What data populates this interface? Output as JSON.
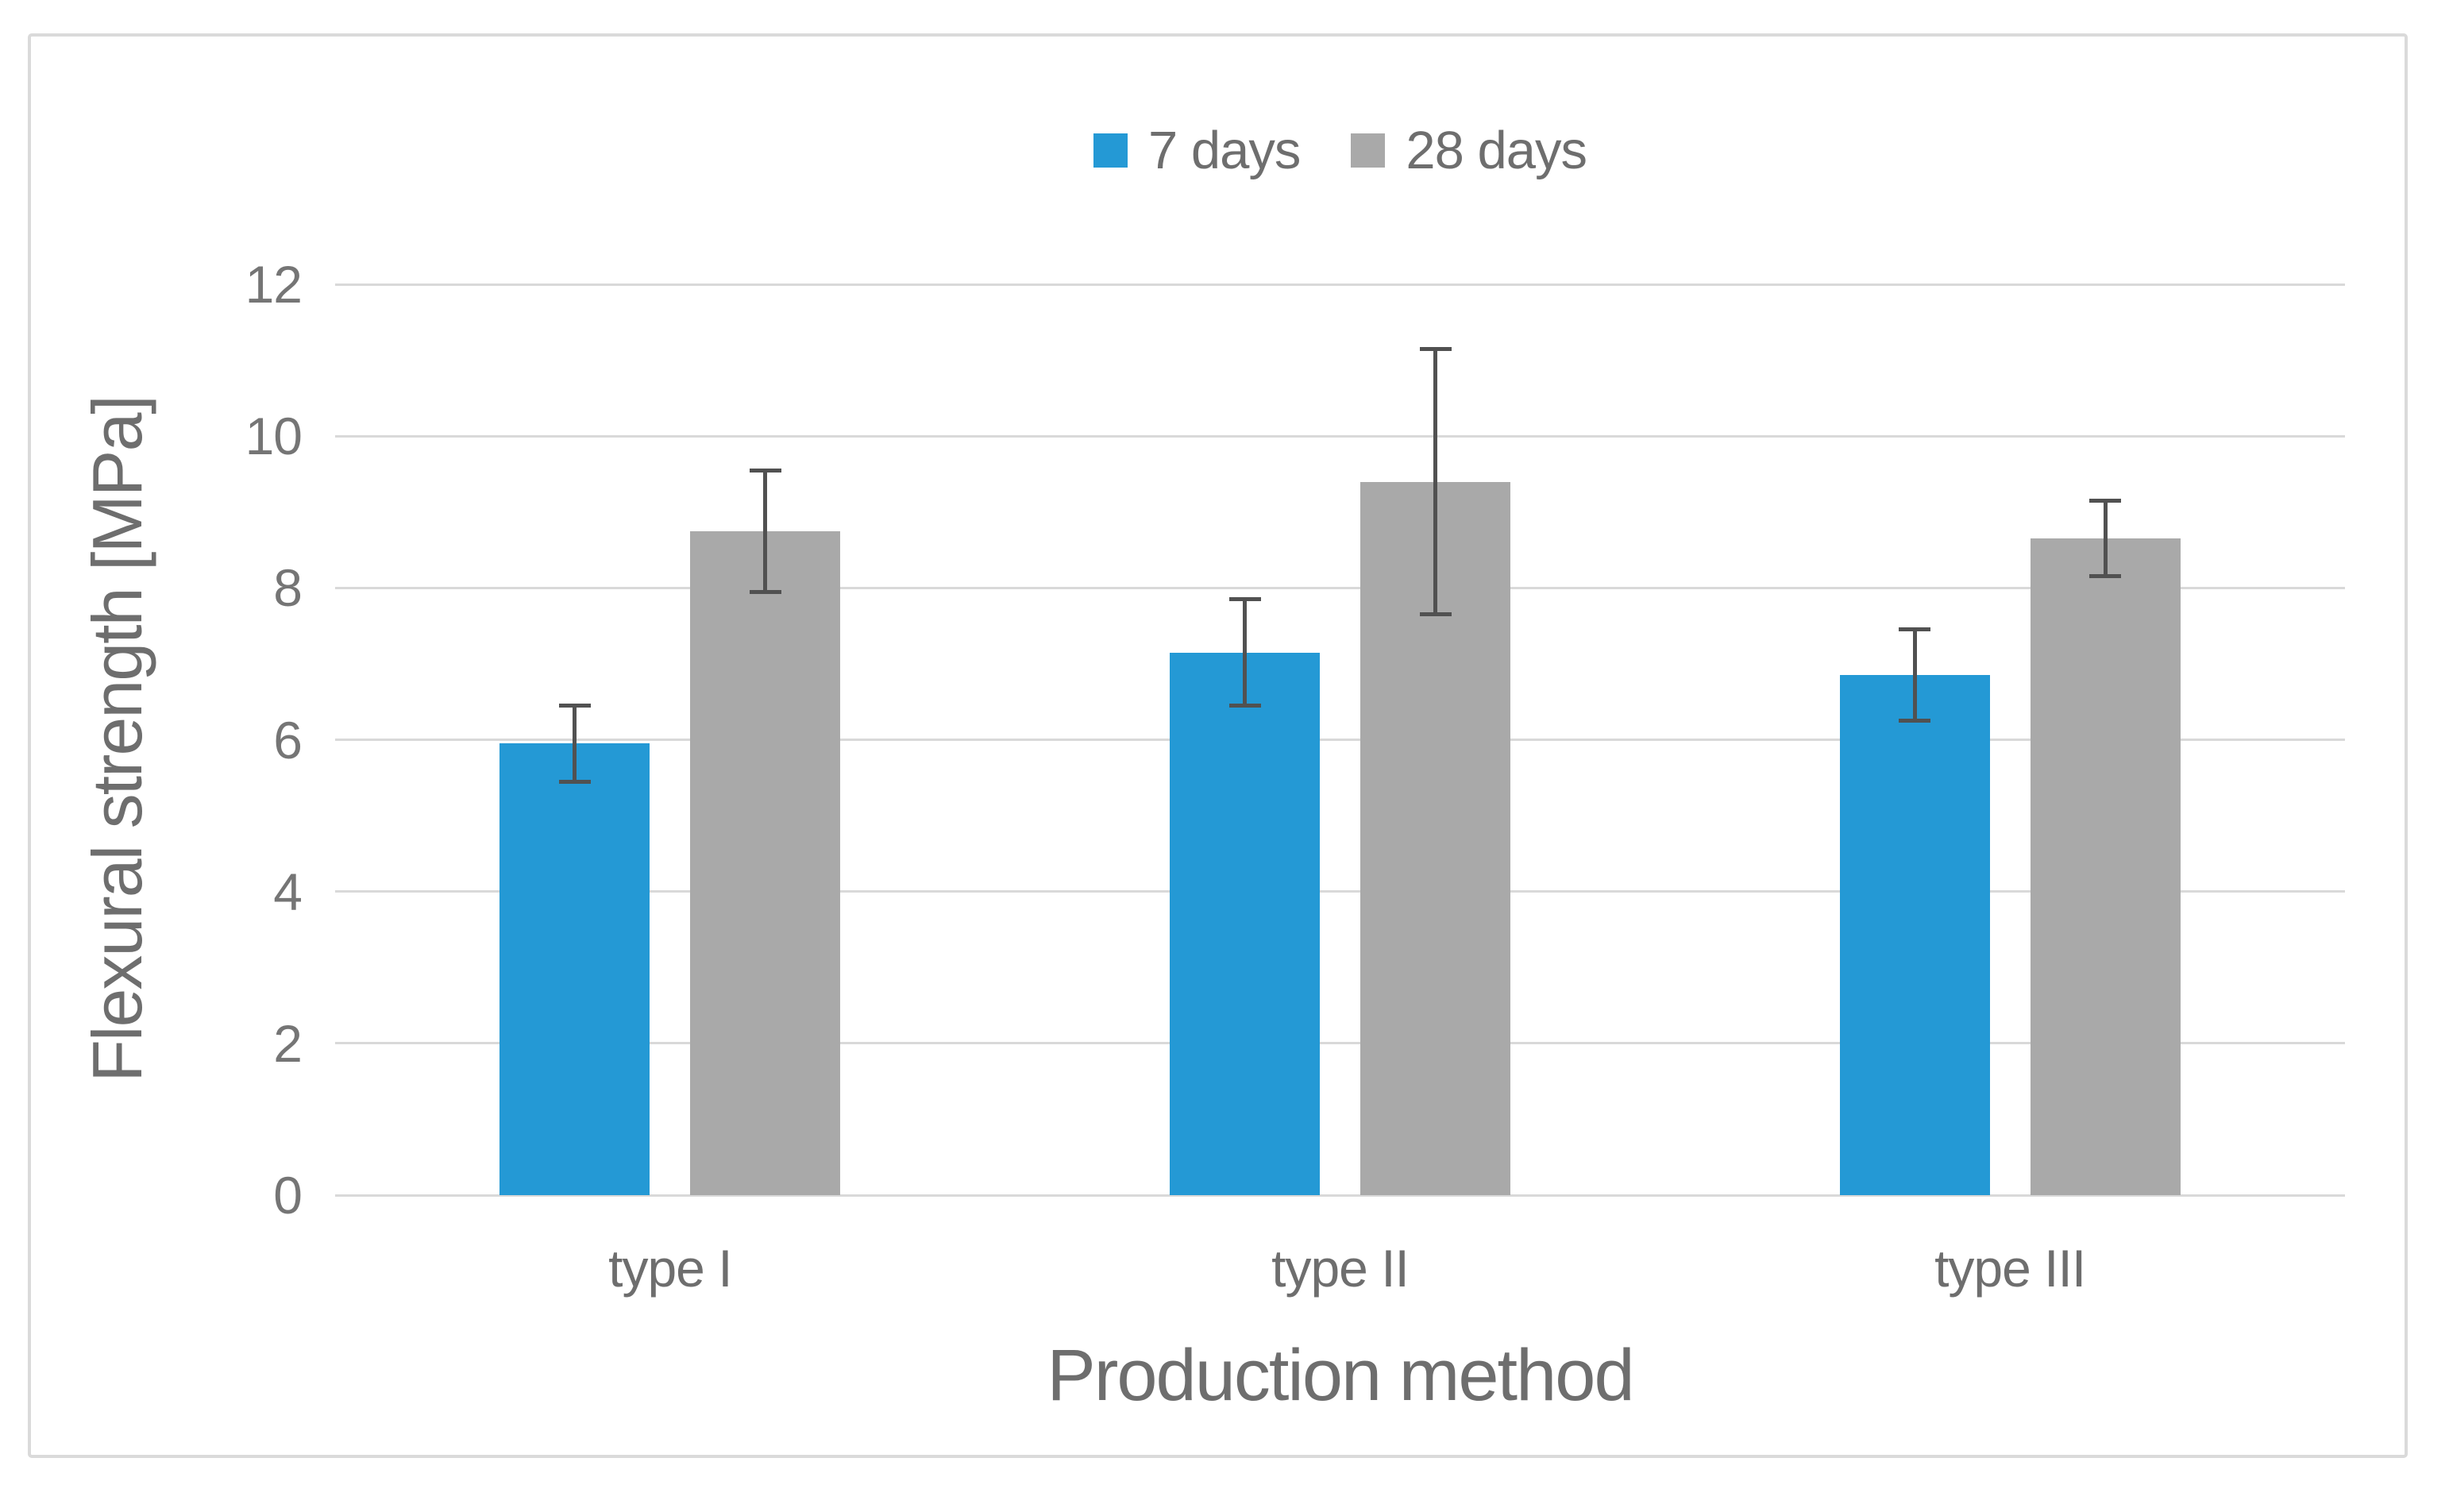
{
  "figure": {
    "background": "#ffffff",
    "border_color": "#dadada"
  },
  "chart_data": {
    "type": "bar",
    "title": "",
    "categories": [
      "type I",
      "type II",
      "type III"
    ],
    "series": [
      {
        "name": "7 days",
        "color": "#2499d5",
        "values": [
          5.95,
          7.15,
          6.85
        ],
        "error_bars": [
          0.5,
          0.7,
          0.6
        ]
      },
      {
        "name": "28 days",
        "color": "#a9a9a9",
        "values": [
          8.75,
          9.4,
          8.65
        ],
        "error_bars": [
          0.8,
          1.75,
          0.5
        ]
      }
    ],
    "xlabel": "Production method",
    "ylabel": "Flexural strength [MPa]",
    "ylim": [
      0,
      12
    ],
    "yticks": [
      0,
      2,
      4,
      6,
      8,
      10,
      12
    ],
    "grid": true,
    "legend_position": "top-center",
    "gridline_color": "#d9d9d9",
    "axis_line_color": "#d9d9d9",
    "error_bar_color": "#515151",
    "text_color": "#6e6e6e"
  }
}
